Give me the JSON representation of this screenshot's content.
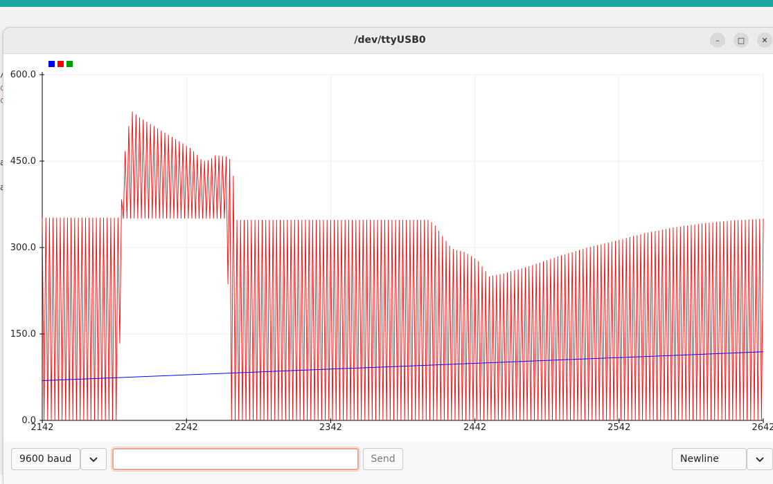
{
  "window": {
    "title": "/dev/ttyUSB0",
    "minimize_glyph": "–",
    "maximize_glyph": "□",
    "close_glyph": "✕"
  },
  "background_fragments": [
    "/",
    "o",
    "o",
    "a",
    "a"
  ],
  "toolbar": {
    "baud_value": "9600 baud",
    "message_value": "",
    "send_label": "Send",
    "line_ending_value": "Newline"
  },
  "colors": {
    "series_1": "#0000ff",
    "series_2": "#ff0000",
    "series_3": "#00a000",
    "grid": "#eeeeee"
  },
  "chart_data": {
    "type": "line",
    "title": "",
    "xlabel": "",
    "ylabel": "",
    "xlim": [
      2142,
      2642
    ],
    "ylim": [
      0,
      600
    ],
    "x_ticks": [
      "2142",
      "2242",
      "2342",
      "2442",
      "2542",
      "2642"
    ],
    "y_ticks": [
      "0.0",
      "150.0",
      "300.0",
      "450.0",
      "600.0"
    ],
    "grid": true,
    "legend": {
      "placement": "top-left",
      "entries": [
        "",
        "",
        ""
      ]
    },
    "series": [
      {
        "color": "#0000ff",
        "shape": "linear",
        "points": [
          [
            2142,
            69
          ],
          [
            2642,
            119
          ]
        ]
      },
      {
        "color": "#ff0000",
        "shape": "oscillating",
        "cycle_width_x": 2.5,
        "low_values": [
          [
            2142,
            0
          ],
          [
            2195,
            0
          ],
          [
            2196,
            178
          ],
          [
            2197,
            350
          ],
          [
            2269,
            350
          ],
          [
            2270,
            345
          ],
          [
            2272,
            55
          ],
          [
            2273,
            0
          ],
          [
            2642,
            0
          ]
        ],
        "high_values": [
          [
            2142,
            352
          ],
          [
            2196,
            352
          ],
          [
            2198,
            415
          ],
          [
            2200,
            485
          ],
          [
            2204,
            537
          ],
          [
            2210,
            525
          ],
          [
            2220,
            510
          ],
          [
            2230,
            495
          ],
          [
            2240,
            480
          ],
          [
            2245,
            472
          ],
          [
            2250,
            460
          ],
          [
            2253,
            450
          ],
          [
            2258,
            452
          ],
          [
            2262,
            460
          ],
          [
            2270,
            458
          ],
          [
            2274,
            450
          ],
          [
            2276,
            348
          ],
          [
            2410,
            348
          ],
          [
            2414,
            340
          ],
          [
            2420,
            318
          ],
          [
            2426,
            298
          ],
          [
            2435,
            292
          ],
          [
            2444,
            278
          ],
          [
            2452,
            250
          ],
          [
            2462,
            255
          ],
          [
            2480,
            268
          ],
          [
            2500,
            285
          ],
          [
            2520,
            300
          ],
          [
            2540,
            312
          ],
          [
            2560,
            325
          ],
          [
            2580,
            335
          ],
          [
            2600,
            342
          ],
          [
            2620,
            347
          ],
          [
            2642,
            350
          ]
        ]
      },
      {
        "color": "#00a000",
        "shape": "none",
        "points": []
      }
    ]
  }
}
